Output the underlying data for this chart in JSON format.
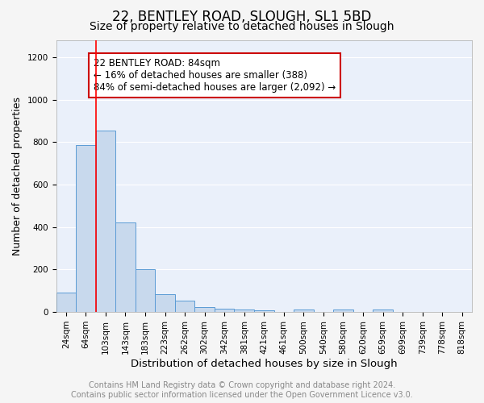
{
  "title1": "22, BENTLEY ROAD, SLOUGH, SL1 5BD",
  "title2": "Size of property relative to detached houses in Slough",
  "xlabel": "Distribution of detached houses by size in Slough",
  "ylabel": "Number of detached properties",
  "categories": [
    "24sqm",
    "64sqm",
    "103sqm",
    "143sqm",
    "183sqm",
    "223sqm",
    "262sqm",
    "302sqm",
    "342sqm",
    "381sqm",
    "421sqm",
    "461sqm",
    "500sqm",
    "540sqm",
    "580sqm",
    "620sqm",
    "659sqm",
    "699sqm",
    "739sqm",
    "778sqm",
    "818sqm"
  ],
  "values": [
    90,
    785,
    855,
    420,
    200,
    85,
    52,
    22,
    15,
    10,
    8,
    0,
    12,
    0,
    10,
    0,
    12,
    0,
    0,
    0,
    0
  ],
  "bar_color": "#c8d9ed",
  "bar_edge_color": "#5b9bd5",
  "red_line_x": 1.52,
  "annotation_line1": "22 BENTLEY ROAD: 84sqm",
  "annotation_line2": "← 16% of detached houses are smaller (388)",
  "annotation_line3": "84% of semi-detached houses are larger (2,092) →",
  "annotation_box_color": "#ffffff",
  "annotation_box_edge_color": "#cc0000",
  "ylim": [
    0,
    1280
  ],
  "yticks": [
    0,
    200,
    400,
    600,
    800,
    1000,
    1200
  ],
  "background_color": "#eaf0fa",
  "fig_background_color": "#f5f5f5",
  "grid_color": "#ffffff",
  "footer_line1": "Contains HM Land Registry data © Crown copyright and database right 2024.",
  "footer_line2": "Contains public sector information licensed under the Open Government Licence v3.0.",
  "title1_fontsize": 12,
  "title2_fontsize": 10,
  "xlabel_fontsize": 9.5,
  "ylabel_fontsize": 9,
  "tick_fontsize": 7.5,
  "footer_fontsize": 7,
  "annotation_fontsize": 8.5
}
